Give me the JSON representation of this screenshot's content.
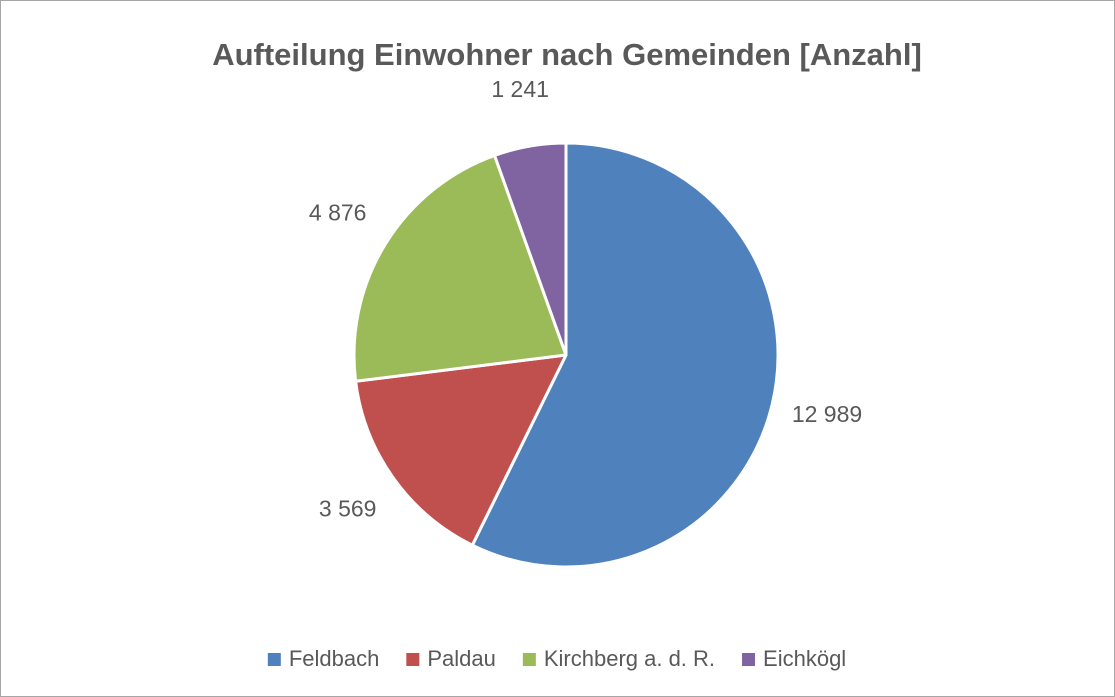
{
  "chart_data": {
    "type": "pie",
    "title": "Aufteilung Einwohner nach Gemeinden [Anzahl]",
    "categories": [
      "Feldbach",
      "Paldau",
      "Kirchberg a. d. R.",
      "Eichkögl"
    ],
    "values": [
      12989,
      3569,
      4876,
      1241
    ],
    "value_labels": [
      "12 989",
      "3 569",
      "4 876",
      "1 241"
    ],
    "colors": [
      "#4f81bd",
      "#c0504d",
      "#9bbb59",
      "#8064a2"
    ],
    "legend": "bottom"
  }
}
